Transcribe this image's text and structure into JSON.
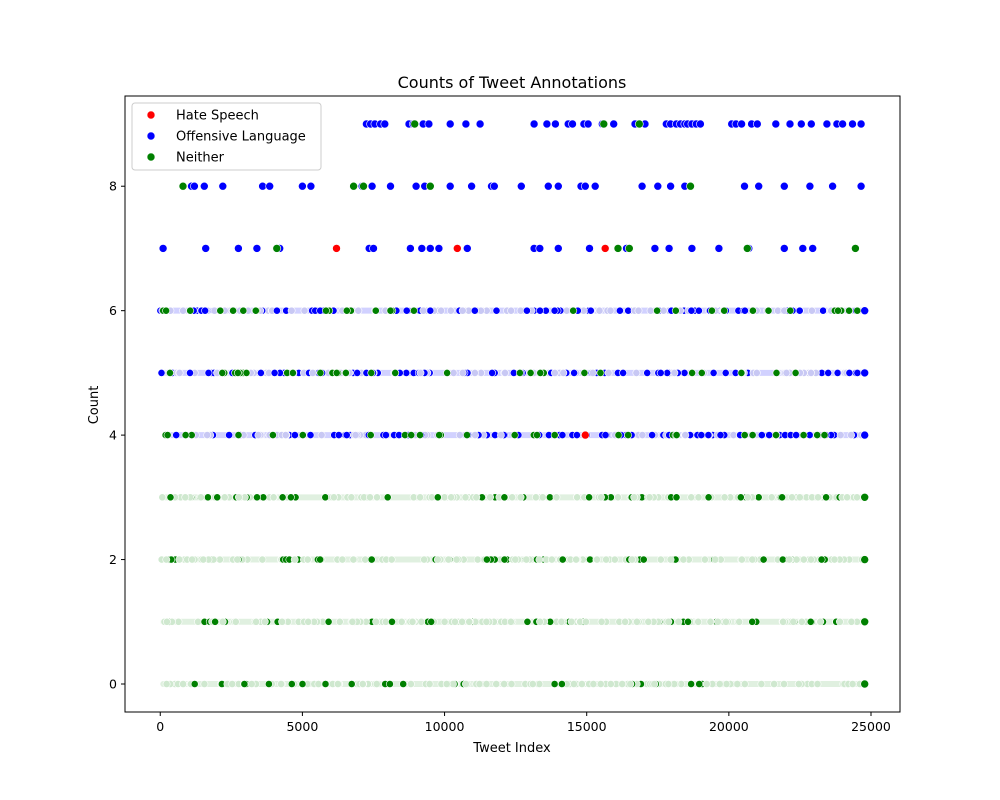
{
  "chart_data": {
    "type": "scatter",
    "title": "Counts of Tweet Annotations",
    "xlabel": "Tweet Index",
    "ylabel": "Count",
    "xlim": [
      -1240,
      26020
    ],
    "ylim": [
      -0.45,
      9.45
    ],
    "xticks": [
      0,
      5000,
      10000,
      15000,
      20000,
      25000
    ],
    "yticks": [
      0,
      2,
      4,
      6,
      8
    ],
    "grid": false,
    "legend_placement": "top-left",
    "series": [
      {
        "name": "Hate Speech",
        "color": "#ff0000",
        "points": [
          [
            6200,
            7
          ],
          [
            10450,
            7
          ],
          [
            15650,
            7
          ],
          [
            14950,
            4
          ],
          [
            18700,
            9
          ]
        ]
      },
      {
        "name": "Offensive Language",
        "color": "#0000ff",
        "points": [
          [
            100,
            7
          ],
          [
            1600,
            7
          ],
          [
            2750,
            7
          ],
          [
            3400,
            7
          ],
          [
            4200,
            7
          ],
          [
            7350,
            7
          ],
          [
            7500,
            7
          ],
          [
            8800,
            7
          ],
          [
            9200,
            7
          ],
          [
            9500,
            7
          ],
          [
            9800,
            7
          ],
          [
            10800,
            7
          ],
          [
            13150,
            7
          ],
          [
            13350,
            7
          ],
          [
            14000,
            7
          ],
          [
            15100,
            7
          ],
          [
            16400,
            7
          ],
          [
            17400,
            7
          ],
          [
            17900,
            7
          ],
          [
            18700,
            7
          ],
          [
            19650,
            7
          ],
          [
            20700,
            7
          ],
          [
            21950,
            7
          ],
          [
            22600,
            7
          ],
          [
            22950,
            7
          ],
          [
            1100,
            8
          ],
          [
            1200,
            8
          ],
          [
            1550,
            8
          ],
          [
            2200,
            8
          ],
          [
            3600,
            8
          ],
          [
            3850,
            8
          ],
          [
            5000,
            8
          ],
          [
            5300,
            8
          ],
          [
            7100,
            8
          ],
          [
            7450,
            8
          ],
          [
            8100,
            8
          ],
          [
            9000,
            8
          ],
          [
            9300,
            8
          ],
          [
            10200,
            8
          ],
          [
            10950,
            8
          ],
          [
            11650,
            8
          ],
          [
            11750,
            8
          ],
          [
            12700,
            8
          ],
          [
            13650,
            8
          ],
          [
            14000,
            8
          ],
          [
            14800,
            8
          ],
          [
            14950,
            8
          ],
          [
            15300,
            8
          ],
          [
            16950,
            8
          ],
          [
            17500,
            8
          ],
          [
            17950,
            8
          ],
          [
            18450,
            8
          ],
          [
            20550,
            8
          ],
          [
            21050,
            8
          ],
          [
            21950,
            8
          ],
          [
            22850,
            8
          ],
          [
            23650,
            8
          ],
          [
            24650,
            8
          ],
          [
            7250,
            9
          ],
          [
            7400,
            9
          ],
          [
            7550,
            9
          ],
          [
            7750,
            9
          ],
          [
            7900,
            9
          ],
          [
            8750,
            9
          ],
          [
            8900,
            9
          ],
          [
            9250,
            9
          ],
          [
            9450,
            9
          ],
          [
            10200,
            9
          ],
          [
            10750,
            9
          ],
          [
            11250,
            9
          ],
          [
            13150,
            9
          ],
          [
            13600,
            9
          ],
          [
            13900,
            9
          ],
          [
            14350,
            9
          ],
          [
            14500,
            9
          ],
          [
            14900,
            9
          ],
          [
            15050,
            9
          ],
          [
            15550,
            9
          ],
          [
            15950,
            9
          ],
          [
            16700,
            9
          ],
          [
            17050,
            9
          ],
          [
            17800,
            9
          ],
          [
            17950,
            9
          ],
          [
            18150,
            9
          ],
          [
            18300,
            9
          ],
          [
            18450,
            9
          ],
          [
            18550,
            9
          ],
          [
            18700,
            9
          ],
          [
            18850,
            9
          ],
          [
            19000,
            9
          ],
          [
            20100,
            9
          ],
          [
            20250,
            9
          ],
          [
            20450,
            9
          ],
          [
            20800,
            9
          ],
          [
            21000,
            9
          ],
          [
            21650,
            9
          ],
          [
            22150,
            9
          ],
          [
            22550,
            9
          ],
          [
            22900,
            9
          ],
          [
            23450,
            9
          ],
          [
            23800,
            9
          ],
          [
            24000,
            9
          ],
          [
            24350,
            9
          ],
          [
            24650,
            9
          ]
        ]
      },
      {
        "name": "Neither",
        "color": "#008000",
        "points": [
          [
            800,
            8
          ],
          [
            6800,
            8
          ],
          [
            7150,
            8
          ],
          [
            9500,
            8
          ],
          [
            18650,
            8
          ],
          [
            4100,
            7
          ],
          [
            16100,
            7
          ],
          [
            16500,
            7
          ],
          [
            20650,
            7
          ],
          [
            24450,
            7
          ],
          [
            8950,
            9
          ],
          [
            15600,
            9
          ],
          [
            16850,
            9
          ]
        ]
      }
    ],
    "dense_bands": [
      {
        "y": 0,
        "color": "#008000",
        "from": 0,
        "to": 24780,
        "end_marker": true
      },
      {
        "y": 1,
        "color": "#008000",
        "from": 0,
        "to": 24780,
        "end_marker": true
      },
      {
        "y": 2,
        "color": "#008000",
        "from": 0,
        "to": 24780,
        "end_marker": true
      },
      {
        "y": 3,
        "color": "#008000",
        "from": 0,
        "to": 24780,
        "end_marker": true
      },
      {
        "y": 4,
        "color": "#0000ff",
        "from": 150,
        "to": 24780,
        "end_marker": true
      },
      {
        "y": 5,
        "color": "#0000ff",
        "from": 0,
        "to": 24780,
        "end_marker": true
      },
      {
        "y": 6,
        "color": "#0000ff",
        "from": 0,
        "to": 24780,
        "end_marker": true
      }
    ]
  }
}
